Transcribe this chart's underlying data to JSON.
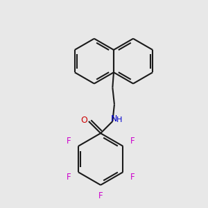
{
  "background_color": "#e8e8e8",
  "bond_color": "#1a1a1a",
  "oxygen_color": "#cc0000",
  "nitrogen_color": "#0000cc",
  "fluorine_color": "#cc00cc",
  "bond_width": 1.5,
  "font_size_atom": 9,
  "font_size_F": 8.5,
  "xlim": [
    0.0,
    1.0
  ],
  "ylim": [
    0.0,
    1.0
  ]
}
